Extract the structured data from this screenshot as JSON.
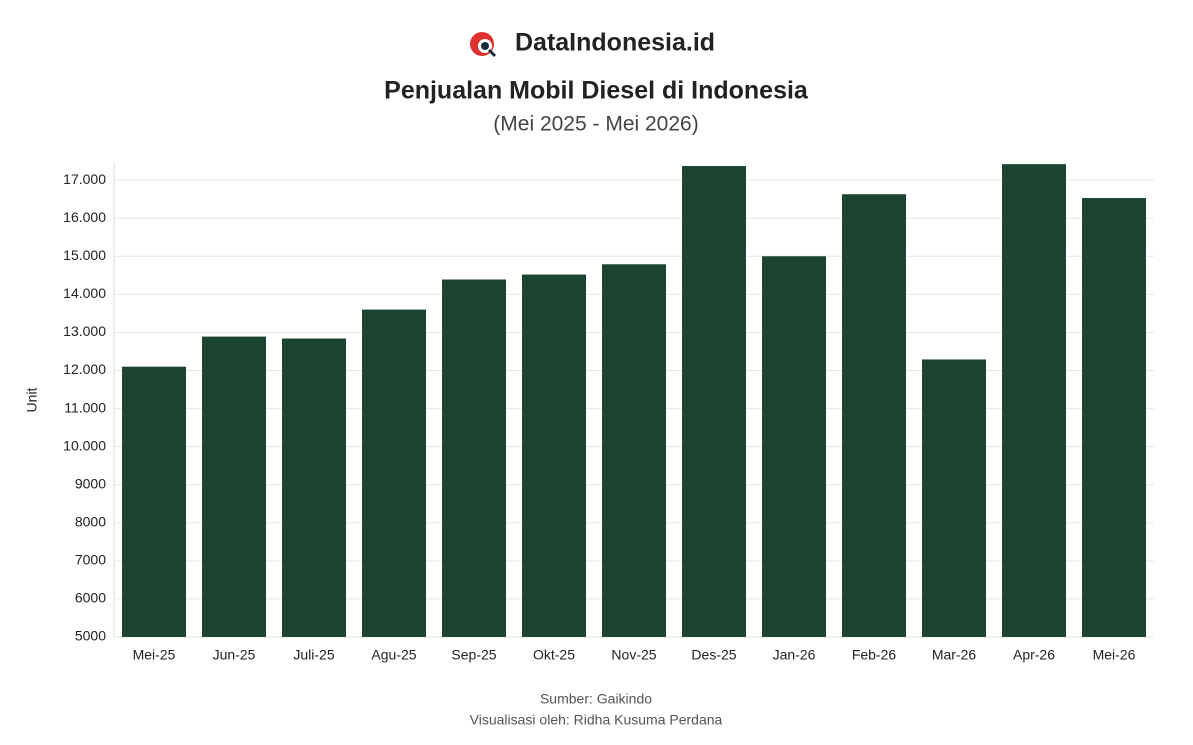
{
  "brand": "DataIndonesia.id",
  "chart_data": {
    "type": "bar",
    "title": "Penjualan Mobil Diesel di Indonesia",
    "subtitle": "(Mei 2025 - Mei 2026)",
    "y_label": "Unit",
    "categories": [
      "Mei-25",
      "Jun-25",
      "Juli-25",
      "Agu-25",
      "Sep-25",
      "Okt-25",
      "Nov-25",
      "Des-25",
      "Jan-26",
      "Feb-26",
      "Mar-26",
      "Apr-26",
      "Mei-26"
    ],
    "values": [
      12100,
      12890,
      12840,
      13600,
      14390,
      14520,
      14790,
      17370,
      15000,
      16630,
      12290,
      17420,
      16530
    ],
    "color": "#1b4530",
    "ylim": [
      5000,
      17450
    ],
    "yticks": [
      5000,
      6000,
      7000,
      8000,
      9000,
      {
        "value": 10000,
        "label": "10.000"
      },
      {
        "value": 11000,
        "label": "11.000"
      },
      {
        "value": 12000,
        "label": "12.000"
      },
      {
        "value": 13000,
        "label": "13.000"
      },
      {
        "value": 14000,
        "label": "14.000"
      },
      {
        "value": 15000,
        "label": "15.000"
      },
      {
        "value": 16000,
        "label": "16.000"
      },
      {
        "value": 17000,
        "label": "17.000"
      }
    ],
    "grid": true,
    "source": "Sumber: Gaikindo",
    "credit": "Visualisasi oleh: Ridha Kusuma Perdana"
  }
}
